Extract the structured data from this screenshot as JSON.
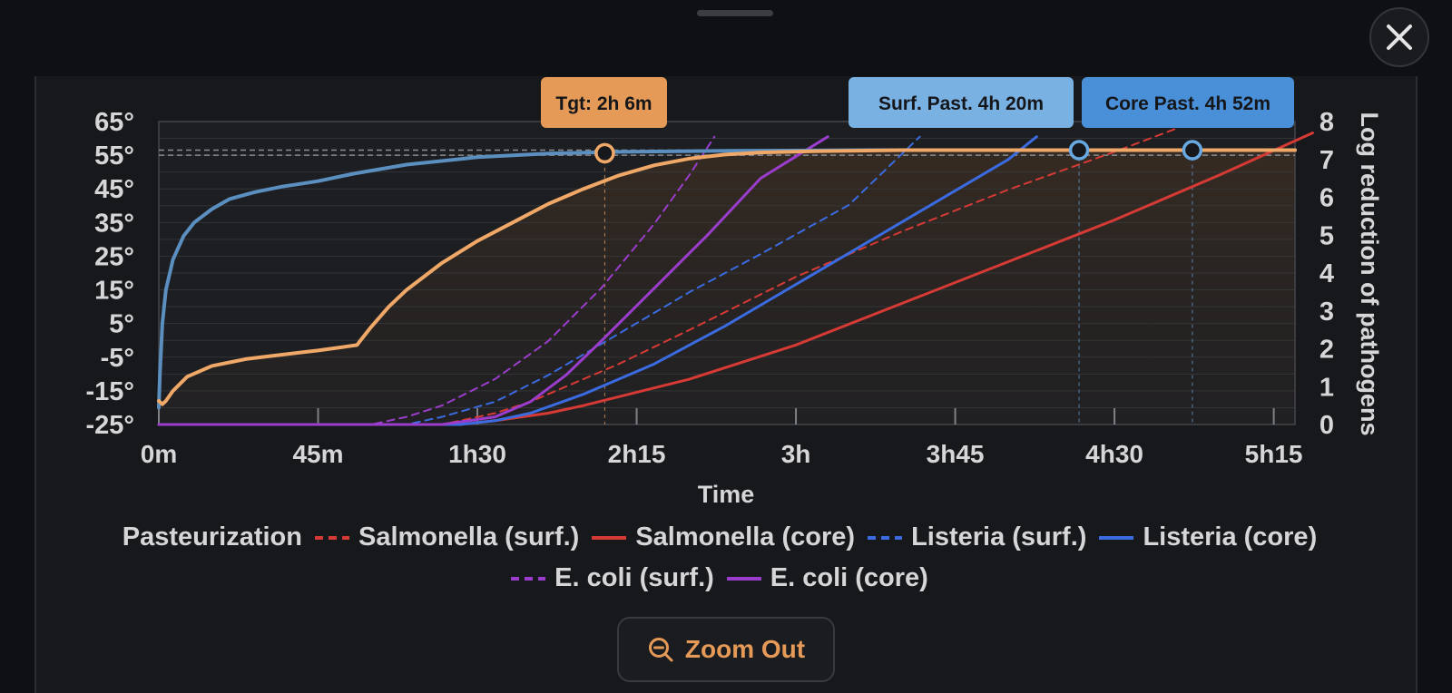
{
  "chart_data": {
    "type": "line",
    "xlabel": "Time",
    "ylabel_right": "Log reduction of pathogens",
    "x_unit": "minutes",
    "xlim": [
      0,
      321
    ],
    "x_ticks": [
      {
        "value": 0,
        "label": "0m"
      },
      {
        "value": 45,
        "label": "45m"
      },
      {
        "value": 90,
        "label": "1h30"
      },
      {
        "value": 135,
        "label": "2h15"
      },
      {
        "value": 180,
        "label": "3h"
      },
      {
        "value": 225,
        "label": "3h45"
      },
      {
        "value": 270,
        "label": "4h30"
      },
      {
        "value": 315,
        "label": "5h15"
      }
    ],
    "y_left": {
      "ylim": [
        -25,
        65
      ],
      "ticks": [
        "-25°",
        "-15°",
        "-5°",
        "5°",
        "15°",
        "25°",
        "35°",
        "45°",
        "55°",
        "65°"
      ],
      "tick_values": [
        -25,
        -15,
        -5,
        5,
        15,
        25,
        35,
        45,
        55,
        65
      ]
    },
    "y_right": {
      "ylim": [
        0,
        8
      ],
      "ticks": [
        "0",
        "1",
        "2",
        "3",
        "4",
        "5",
        "6",
        "7",
        "8"
      ],
      "tick_values": [
        0,
        1,
        2,
        3,
        4,
        5,
        6,
        7,
        8
      ]
    },
    "reference_lines": [
      {
        "y": 56.5
      },
      {
        "y": 55
      }
    ],
    "series": [
      {
        "axis": "left",
        "color": "#5a8fbf",
        "dash": false,
        "points": [
          [
            0,
            -20
          ],
          [
            0.3,
            -10
          ],
          [
            1,
            5
          ],
          [
            2,
            15
          ],
          [
            4,
            24
          ],
          [
            7,
            31
          ],
          [
            10,
            35
          ],
          [
            15,
            39
          ],
          [
            20,
            42
          ],
          [
            27,
            44
          ],
          [
            35,
            45.7
          ],
          [
            40,
            46.5
          ],
          [
            45,
            47.3
          ],
          [
            55,
            49.5
          ],
          [
            70,
            52.2
          ],
          [
            90,
            54.4
          ],
          [
            110,
            55.5
          ],
          [
            130,
            56
          ],
          [
            160,
            56.3
          ],
          [
            200,
            56.5
          ],
          [
            260,
            56.5
          ],
          [
            321,
            56.5
          ]
        ]
      },
      {
        "axis": "left",
        "color": "#f0a868",
        "dash": false,
        "points": [
          [
            0,
            -18
          ],
          [
            1,
            -19
          ],
          [
            2,
            -18
          ],
          [
            4,
            -15
          ],
          [
            8,
            -10.8
          ],
          [
            15,
            -7.6
          ],
          [
            25,
            -5.5
          ],
          [
            33,
            -4.5
          ],
          [
            40,
            -3.6
          ],
          [
            45,
            -3
          ],
          [
            52,
            -2
          ],
          [
            56,
            -1.4
          ],
          [
            57,
            0
          ],
          [
            60,
            4
          ],
          [
            65,
            10
          ],
          [
            70,
            15
          ],
          [
            80,
            23
          ],
          [
            90,
            29.5
          ],
          [
            100,
            35
          ],
          [
            110,
            40.5
          ],
          [
            120,
            45
          ],
          [
            130,
            49
          ],
          [
            140,
            52
          ],
          [
            150,
            54
          ],
          [
            160,
            55.2
          ],
          [
            170,
            55.8
          ],
          [
            185,
            56.2
          ],
          [
            210,
            56.5
          ],
          [
            260,
            56.5
          ],
          [
            321,
            56.5
          ]
        ]
      },
      {
        "name": "Salmonella (surf.)",
        "axis": "right",
        "color": "#d63a35",
        "dash": true,
        "points": [
          [
            0,
            0
          ],
          [
            80,
            0
          ],
          [
            85,
            0.1
          ],
          [
            95,
            0.3
          ],
          [
            105,
            0.6
          ],
          [
            130,
            1.6
          ],
          [
            150,
            2.5
          ],
          [
            180,
            3.9
          ],
          [
            210,
            5.1
          ],
          [
            240,
            6.2
          ],
          [
            270,
            7.2
          ],
          [
            287,
            7.8
          ]
        ]
      },
      {
        "name": "Salmonella (core)",
        "axis": "right",
        "color": "#d63a35",
        "dash": false,
        "points": [
          [
            0,
            0
          ],
          [
            85,
            0
          ],
          [
            95,
            0.1
          ],
          [
            110,
            0.3
          ],
          [
            120,
            0.5
          ],
          [
            150,
            1.2
          ],
          [
            180,
            2.1
          ],
          [
            210,
            3.2
          ],
          [
            240,
            4.3
          ],
          [
            270,
            5.4
          ],
          [
            300,
            6.6
          ],
          [
            326,
            7.7
          ]
        ]
      },
      {
        "name": "Listeria (surf.)",
        "axis": "right",
        "color": "#3b6be0",
        "dash": true,
        "points": [
          [
            0,
            0
          ],
          [
            70,
            0
          ],
          [
            80,
            0.2
          ],
          [
            95,
            0.6
          ],
          [
            110,
            1.3
          ],
          [
            130,
            2.4
          ],
          [
            150,
            3.5
          ],
          [
            170,
            4.5
          ],
          [
            195,
            5.8
          ],
          [
            215,
            7.6
          ]
        ]
      },
      {
        "name": "Listeria (core)",
        "axis": "right",
        "color": "#3b6be0",
        "dash": false,
        "points": [
          [
            0,
            0
          ],
          [
            85,
            0
          ],
          [
            95,
            0.1
          ],
          [
            105,
            0.3
          ],
          [
            120,
            0.8
          ],
          [
            140,
            1.6
          ],
          [
            160,
            2.6
          ],
          [
            180,
            3.7
          ],
          [
            200,
            4.8
          ],
          [
            220,
            5.9
          ],
          [
            240,
            7.0
          ],
          [
            248,
            7.6
          ]
        ]
      },
      {
        "name": "E. coli (surf.)",
        "axis": "right",
        "color": "#9b3dcc",
        "dash": true,
        "points": [
          [
            0,
            0
          ],
          [
            60,
            0
          ],
          [
            70,
            0.2
          ],
          [
            80,
            0.5
          ],
          [
            95,
            1.2
          ],
          [
            110,
            2.2
          ],
          [
            125,
            3.6
          ],
          [
            140,
            5.3
          ],
          [
            150,
            6.6
          ],
          [
            157,
            7.6
          ]
        ]
      },
      {
        "name": "E. coli (core)",
        "axis": "right",
        "color": "#9b3dcc",
        "dash": false,
        "points": [
          [
            0,
            0
          ],
          [
            80,
            0
          ],
          [
            95,
            0.2
          ],
          [
            105,
            0.6
          ],
          [
            115,
            1.3
          ],
          [
            125,
            2.2
          ],
          [
            140,
            3.6
          ],
          [
            155,
            5.0
          ],
          [
            170,
            6.5
          ],
          [
            189,
            7.6
          ]
        ]
      }
    ],
    "markers": [
      {
        "label": "Tgt: 2h 6m",
        "x": 126,
        "y": 55.6,
        "ring_color": "#f0a868",
        "label_bg": "#e59a57"
      },
      {
        "label": "Surf. Past. 4h 20m",
        "x": 260,
        "y": 56.5,
        "ring_color": "#69a9e2",
        "label_bg": "#79b2e2"
      },
      {
        "label": "Core Past. 4h 52m",
        "x": 292,
        "y": 56.5,
        "ring_color": "#69a9e2",
        "label_bg": "#4a90d9"
      }
    ],
    "legend": {
      "title": "Pasteurization",
      "items": [
        {
          "label": "Salmonella (surf.)",
          "color": "#d63a35",
          "dash": true
        },
        {
          "label": "Salmonella (core)",
          "color": "#d63a35",
          "dash": false
        },
        {
          "label": "Listeria (surf.)",
          "color": "#3b6be0",
          "dash": true
        },
        {
          "label": "Listeria (core)",
          "color": "#3b6be0",
          "dash": false
        },
        {
          "label": "E. coli (surf.)",
          "color": "#9b3dcc",
          "dash": true
        },
        {
          "label": "E. coli (core)",
          "color": "#9b3dcc",
          "dash": false
        }
      ]
    }
  },
  "zoom_button": {
    "label": "Zoom Out",
    "icon": "zoom-out-icon"
  },
  "close_button": {
    "icon": "close-icon"
  },
  "drag_handle": {
    "icon": "drag-handle"
  }
}
